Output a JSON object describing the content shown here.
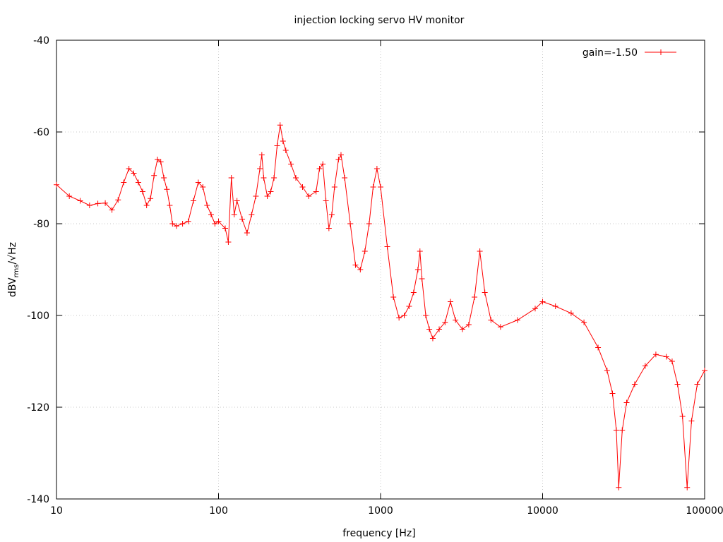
{
  "chart_data": {
    "type": "line",
    "title": "injection locking servo HV monitor",
    "xlabel": "frequency [Hz]",
    "ylabel_parts": [
      "dBV",
      "rms",
      "/√Hz"
    ],
    "xlog": true,
    "grid": true,
    "legend": "upper right",
    "xlim": [
      10,
      100000
    ],
    "ylim": [
      -140,
      -40
    ],
    "xticks": [
      10,
      100,
      1000,
      10000,
      100000
    ],
    "yticks": [
      -140,
      -120,
      -100,
      -80,
      -60,
      -40
    ],
    "series": [
      {
        "name": "gain=-1.50",
        "color": "#ff0000",
        "x": [
          10,
          12,
          14,
          16,
          18,
          20,
          22,
          24,
          26,
          28,
          30,
          32,
          34,
          36,
          38,
          40,
          42,
          44,
          46,
          48,
          50,
          52,
          55,
          60,
          65,
          70,
          75,
          80,
          85,
          90,
          95,
          100,
          110,
          115,
          120,
          125,
          130,
          140,
          150,
          160,
          170,
          180,
          185,
          190,
          200,
          210,
          220,
          230,
          240,
          250,
          260,
          280,
          300,
          330,
          360,
          400,
          420,
          440,
          460,
          480,
          500,
          520,
          550,
          570,
          600,
          650,
          700,
          750,
          800,
          850,
          900,
          950,
          1000,
          1100,
          1200,
          1300,
          1400,
          1500,
          1600,
          1700,
          1750,
          1800,
          1900,
          2000,
          2100,
          2300,
          2500,
          2700,
          2900,
          3200,
          3500,
          3800,
          4100,
          4400,
          4800,
          5500,
          7000,
          9000,
          10000,
          12000,
          15000,
          18000,
          22000,
          25000,
          27000,
          28500,
          29500,
          31000,
          33000,
          37000,
          43000,
          50000,
          58000,
          63000,
          68000,
          73000,
          78000,
          83000,
          90000,
          100000
        ],
        "values": [
          -71.5,
          -74,
          -75,
          -76,
          -75.6,
          -75.5,
          -77,
          -74.8,
          -71,
          -68,
          -69,
          -71,
          -73,
          -76,
          -74.5,
          -69.5,
          -66,
          -66.5,
          -70,
          -72.5,
          -76,
          -80,
          -80.5,
          -80,
          -79.5,
          -75,
          -71,
          -72,
          -76,
          -78,
          -80,
          -79.5,
          -81,
          -84,
          -70,
          -78,
          -75,
          -79,
          -82,
          -78,
          -74,
          -68,
          -65,
          -70,
          -74,
          -73,
          -70,
          -63,
          -58.5,
          -62,
          -64,
          -67,
          -70,
          -72,
          -74,
          -73,
          -68,
          -67,
          -75,
          -81,
          -78,
          -72,
          -66,
          -65,
          -70,
          -80,
          -89,
          -90,
          -86,
          -80,
          -72,
          -68,
          -72,
          -85,
          -96,
          -100.5,
          -100,
          -98,
          -95,
          -90,
          -86,
          -92,
          -100,
          -103,
          -105,
          -103,
          -101.5,
          -97,
          -101,
          -103,
          -102,
          -96,
          -86,
          -95,
          -101,
          -102.5,
          -101,
          -98.5,
          -97,
          -98,
          -99.5,
          -101.5,
          -107,
          -112,
          -117,
          -125,
          -137.5,
          -125,
          -119,
          -115,
          -111,
          -108.5,
          -109,
          -110,
          -115,
          -122,
          -137.5,
          -123,
          -115,
          -112
        ]
      }
    ]
  }
}
